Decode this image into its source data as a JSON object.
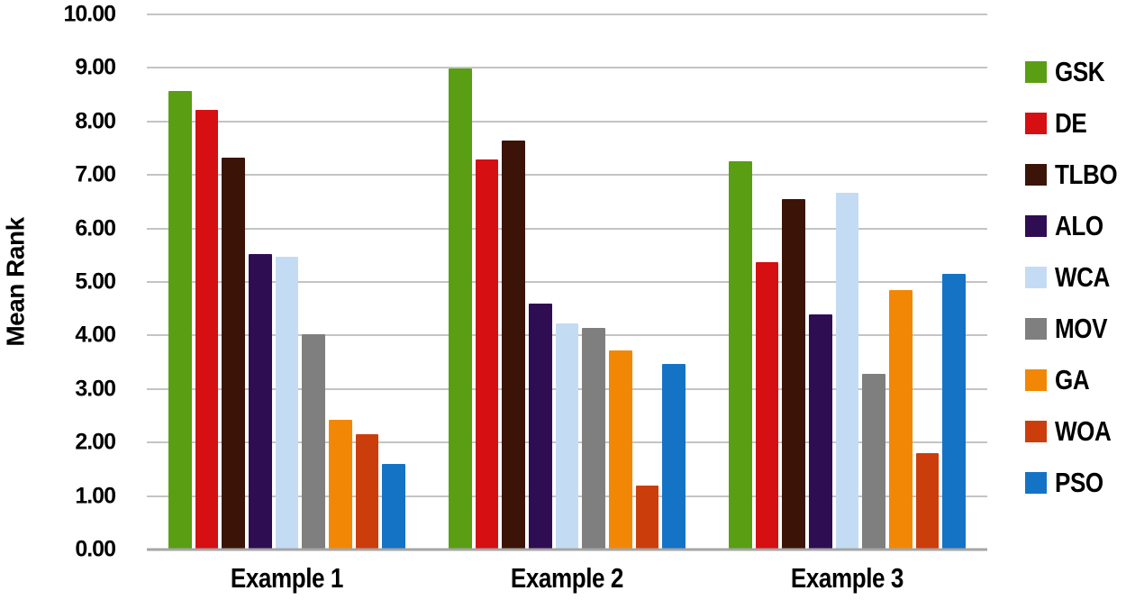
{
  "chart_data": {
    "type": "bar",
    "title": "",
    "xlabel": "",
    "ylabel": "Mean Rank",
    "ylim": [
      0,
      10
    ],
    "ytick_step": 1,
    "ytick_decimals": 2,
    "grid": true,
    "legend_position": "right",
    "categories": [
      "Example 1",
      "Example 2",
      "Example 3"
    ],
    "series": [
      {
        "name": "GSK",
        "color": "#5A9E14",
        "values": [
          8.55,
          8.97,
          7.24
        ]
      },
      {
        "name": "DE",
        "color": "#D50F12",
        "values": [
          8.2,
          7.27,
          5.35
        ]
      },
      {
        "name": "TLBO",
        "color": "#3B1407",
        "values": [
          7.31,
          7.63,
          6.53
        ]
      },
      {
        "name": "ALO",
        "color": "#2F0D53",
        "values": [
          5.5,
          4.58,
          4.38
        ]
      },
      {
        "name": "WCA",
        "color": "#C4DCF3",
        "values": [
          5.46,
          4.21,
          6.65
        ]
      },
      {
        "name": "MOV",
        "color": "#7F7F7F",
        "values": [
          4.0,
          4.13,
          3.27
        ]
      },
      {
        "name": "GA",
        "color": "#F28705",
        "values": [
          2.41,
          3.7,
          4.83
        ]
      },
      {
        "name": "WOA",
        "color": "#CC3D0C",
        "values": [
          2.14,
          1.18,
          1.79
        ]
      },
      {
        "name": "PSO",
        "color": "#1473C5",
        "values": [
          1.58,
          3.45,
          5.13
        ]
      }
    ],
    "colors": {
      "gridline": "#C4C4C4",
      "baseline": "#A6A6A6",
      "text": "#000000",
      "background": "#FFFFFF"
    }
  }
}
